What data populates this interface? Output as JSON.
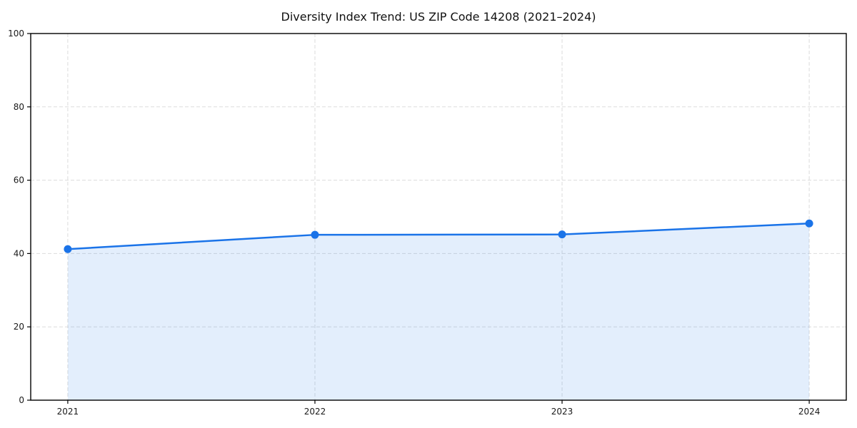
{
  "chart_data": {
    "type": "area",
    "title": "Diversity Index Trend: US ZIP Code 14208 (2021–2024)",
    "categories": [
      "2021",
      "2022",
      "2023",
      "2024"
    ],
    "series": [
      {
        "name": "Diversity Index",
        "values": [
          41.2,
          45.1,
          45.2,
          48.2
        ]
      }
    ],
    "xlabel": "",
    "ylabel": "",
    "ylim": [
      0,
      100
    ],
    "yticks": [
      0,
      20,
      40,
      60,
      80,
      100
    ],
    "grid": "dashed-both-axes",
    "legend": "none",
    "colors": {
      "line": "#1a73e8",
      "marker": "#1a73e8",
      "fill": "rgba(26,115,232,0.12)",
      "grid": "#d9d9d9",
      "axis": "#000000",
      "text": "#111111"
    }
  }
}
